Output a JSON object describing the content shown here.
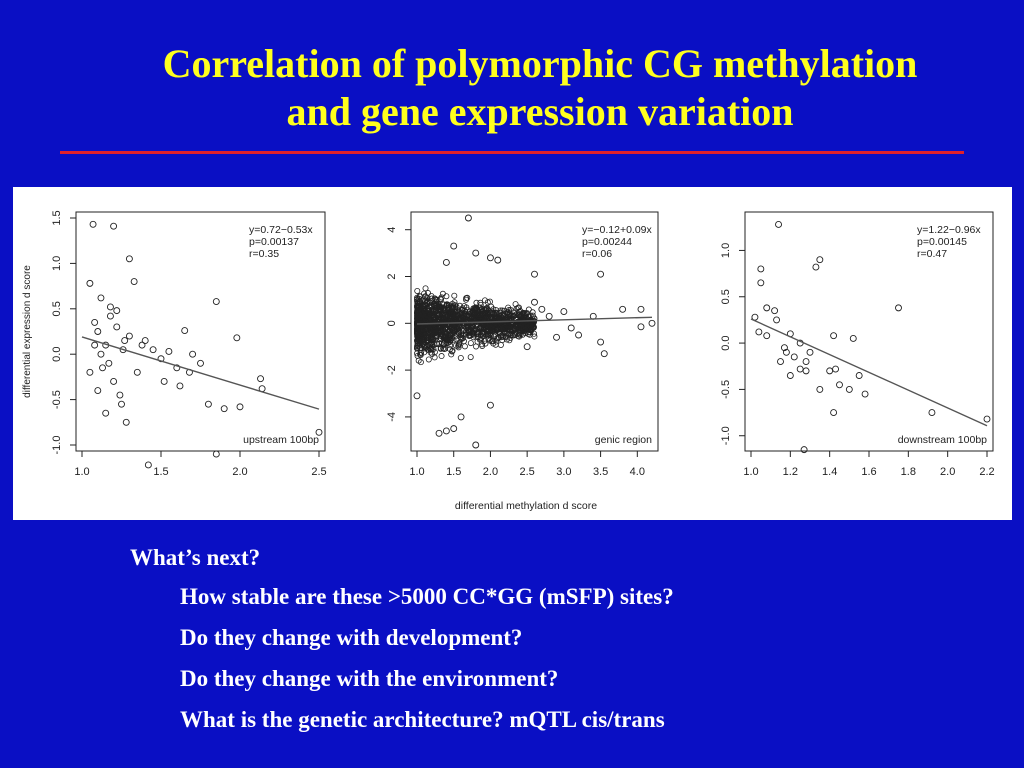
{
  "slide": {
    "title_line1": "Correlation of polymorphic CG methylation",
    "title_line2": "and gene expression variation"
  },
  "bullets": {
    "heading": "What’s next?",
    "items": [
      "How stable are these >5000 CC*GG (mSFP) sites?",
      "Do they change with development?",
      "Do they change with the environment?",
      "What is the genetic architecture? mQTL cis/trans"
    ]
  },
  "colors": {
    "background": "#0a0fc4",
    "title": "#ffff1e",
    "rule": "#e0202a",
    "text": "#ffffff"
  },
  "figure": {
    "shared_xlabel": "differential methylation d score"
  },
  "chart_data": [
    {
      "type": "scatter",
      "ylabel": "differential expression d score",
      "xlabel": "",
      "panel_label": "upstream 100bp",
      "annotation": [
        "y=0.72−0.53x",
        "p=0.00137",
        "r=0.35"
      ],
      "xlim": [
        1.0,
        2.5
      ],
      "ylim": [
        -1.0,
        1.5
      ],
      "xticks": [
        1.0,
        1.5,
        2.0,
        2.5
      ],
      "yticks": [
        -1.0,
        -0.5,
        0.0,
        0.5,
        1.0,
        1.5
      ],
      "regression": {
        "intercept": 0.72,
        "slope": -0.53
      },
      "points": [
        [
          1.07,
          1.43
        ],
        [
          1.2,
          1.41
        ],
        [
          1.05,
          0.78
        ],
        [
          1.12,
          0.62
        ],
        [
          1.18,
          0.52
        ],
        [
          1.22,
          0.48
        ],
        [
          1.3,
          0.2
        ],
        [
          1.38,
          0.1
        ],
        [
          1.45,
          0.05
        ],
        [
          1.55,
          0.03
        ],
        [
          1.6,
          -0.15
        ],
        [
          1.65,
          0.26
        ],
        [
          1.7,
          0.0
        ],
        [
          1.75,
          -0.1
        ],
        [
          1.8,
          -0.55
        ],
        [
          1.85,
          0.58
        ],
        [
          1.9,
          -0.6
        ],
        [
          1.98,
          0.18
        ],
        [
          2.0,
          -0.58
        ],
        [
          2.13,
          -0.27
        ],
        [
          2.14,
          -0.38
        ],
        [
          2.5,
          -0.86
        ],
        [
          1.85,
          -1.1
        ],
        [
          1.42,
          -1.22
        ],
        [
          1.3,
          1.05
        ],
        [
          1.33,
          0.8
        ],
        [
          1.08,
          0.35
        ],
        [
          1.1,
          0.25
        ],
        [
          1.15,
          0.1
        ],
        [
          1.17,
          -0.1
        ],
        [
          1.2,
          -0.3
        ],
        [
          1.25,
          -0.55
        ],
        [
          1.28,
          -0.75
        ],
        [
          1.15,
          -0.65
        ],
        [
          1.1,
          -0.4
        ],
        [
          1.05,
          -0.2
        ],
        [
          1.12,
          0.0
        ],
        [
          1.22,
          0.3
        ],
        [
          1.26,
          0.05
        ],
        [
          1.35,
          -0.2
        ],
        [
          1.4,
          0.15
        ],
        [
          1.5,
          -0.05
        ],
        [
          1.52,
          -0.3
        ],
        [
          1.62,
          -0.35
        ],
        [
          1.68,
          -0.2
        ],
        [
          1.08,
          0.1
        ],
        [
          1.13,
          -0.15
        ],
        [
          1.18,
          0.42
        ],
        [
          1.24,
          -0.45
        ],
        [
          1.27,
          0.15
        ]
      ]
    },
    {
      "type": "scatter",
      "ylabel": "",
      "xlabel": "",
      "panel_label": "genic region",
      "annotation": [
        "y=−0.12+0.09x",
        "p=0.00244",
        "r=0.06"
      ],
      "xlim": [
        1.0,
        4.2
      ],
      "ylim": [
        -5.2,
        4.5
      ],
      "xticks": [
        1.0,
        1.5,
        2.0,
        2.5,
        3.0,
        3.5,
        4.0
      ],
      "yticks": [
        -4,
        -2,
        0,
        2,
        4
      ],
      "regression": {
        "intercept": -0.12,
        "slope": 0.09
      },
      "cloud": {
        "x_range": [
          1.0,
          2.6
        ],
        "y_spread": 1.6,
        "count": 1500
      },
      "points": [
        [
          1.7,
          4.5
        ],
        [
          1.5,
          3.3
        ],
        [
          1.4,
          2.6
        ],
        [
          1.8,
          3.0
        ],
        [
          2.0,
          2.8
        ],
        [
          2.1,
          2.7
        ],
        [
          2.6,
          2.1
        ],
        [
          3.5,
          2.1
        ],
        [
          2.6,
          0.9
        ],
        [
          2.8,
          0.3
        ],
        [
          3.0,
          0.5
        ],
        [
          3.2,
          -0.5
        ],
        [
          3.5,
          -0.8
        ],
        [
          3.55,
          -1.3
        ],
        [
          3.8,
          0.6
        ],
        [
          4.05,
          -0.15
        ],
        [
          4.2,
          0.0
        ],
        [
          4.05,
          0.6
        ],
        [
          2.0,
          -3.5
        ],
        [
          1.4,
          -4.6
        ],
        [
          1.3,
          -4.7
        ],
        [
          1.5,
          -4.5
        ],
        [
          1.8,
          -5.2
        ],
        [
          1.6,
          -4.0
        ],
        [
          1.0,
          -3.1
        ],
        [
          3.4,
          0.3
        ],
        [
          3.1,
          -0.2
        ],
        [
          2.9,
          -0.6
        ],
        [
          2.7,
          0.6
        ],
        [
          2.5,
          -1.0
        ]
      ]
    },
    {
      "type": "scatter",
      "ylabel": "",
      "xlabel": "",
      "panel_label": "downstream 100bp",
      "annotation": [
        "y=1.22−0.96x",
        "p=0.00145",
        "r=0.47"
      ],
      "xlim": [
        1.0,
        2.2
      ],
      "ylim": [
        -1.1,
        1.35
      ],
      "xticks": [
        1.0,
        1.2,
        1.4,
        1.6,
        1.8,
        2.0,
        2.2
      ],
      "yticks": [
        -1.0,
        -0.5,
        0.0,
        0.5,
        1.0
      ],
      "regression": {
        "intercept": 1.22,
        "slope": -0.96
      },
      "points": [
        [
          1.14,
          1.28
        ],
        [
          1.05,
          0.8
        ],
        [
          1.35,
          0.9
        ],
        [
          1.33,
          0.82
        ],
        [
          1.05,
          0.65
        ],
        [
          1.08,
          0.38
        ],
        [
          1.12,
          0.35
        ],
        [
          1.02,
          0.28
        ],
        [
          1.04,
          0.12
        ],
        [
          1.08,
          0.08
        ],
        [
          1.13,
          0.25
        ],
        [
          1.2,
          0.1
        ],
        [
          1.18,
          -0.1
        ],
        [
          1.15,
          -0.2
        ],
        [
          1.22,
          -0.15
        ],
        [
          1.25,
          -0.28
        ],
        [
          1.2,
          -0.35
        ],
        [
          1.28,
          -0.3
        ],
        [
          1.3,
          -0.1
        ],
        [
          1.35,
          -0.5
        ],
        [
          1.4,
          -0.3
        ],
        [
          1.43,
          -0.28
        ],
        [
          1.42,
          0.08
        ],
        [
          1.45,
          -0.45
        ],
        [
          1.52,
          0.05
        ],
        [
          1.55,
          -0.35
        ],
        [
          1.58,
          -0.55
        ],
        [
          1.42,
          -0.75
        ],
        [
          1.75,
          0.38
        ],
        [
          1.92,
          -0.75
        ],
        [
          2.2,
          -0.82
        ],
        [
          1.27,
          -1.15
        ],
        [
          1.25,
          0.0
        ],
        [
          1.17,
          -0.05
        ],
        [
          1.28,
          -0.2
        ],
        [
          1.5,
          -0.5
        ]
      ]
    }
  ]
}
